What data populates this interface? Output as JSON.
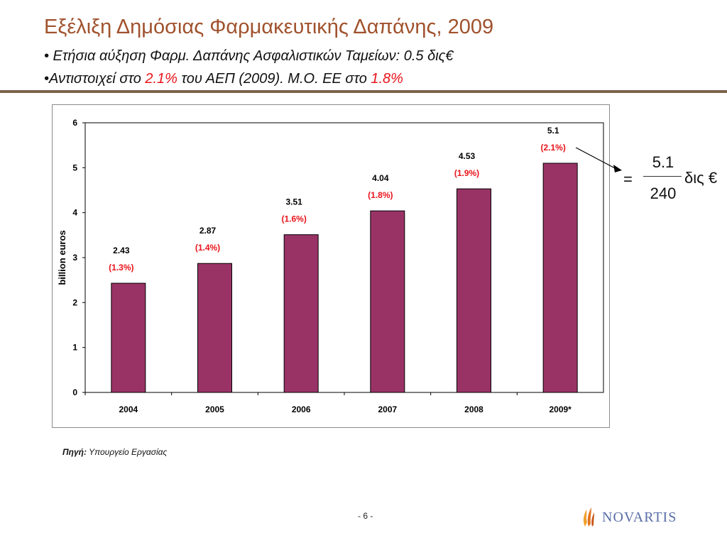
{
  "slide": {
    "title": "Εξέλιξη Δημόσιας Φαρμακευτικής Δαπάνης, 2009",
    "bullet1": "• Ετήσια αύξηση Φαρμ. Δαπάνης Ασφαλιστικών Ταμείων: 0.5 δις€",
    "bullet2_prefix": "•Αντιστοιχεί στο ",
    "bullet2_value1": "2.1%",
    "bullet2_mid": " του ΑΕΠ (2009). Μ.Ο. ΕΕ στο ",
    "bullet2_value2": "1.8%",
    "source_label": "Πηγή:",
    "source_text": " Υπουργείο Εργασίας",
    "page_number": "- 6 -",
    "logo_text": "NOVARTIS"
  },
  "equation": {
    "equals": "=",
    "numerator": "5.1",
    "denominator": "240",
    "unit": "δις €"
  },
  "colors": {
    "bar": "#993366",
    "title": "#a0522d",
    "highlight": "#e8131a",
    "rule": "#7a6348"
  },
  "chart_data": {
    "type": "bar",
    "categories": [
      "2004",
      "2005",
      "2006",
      "2007",
      "2008",
      "2009*"
    ],
    "values": [
      2.43,
      2.87,
      3.51,
      4.04,
      4.53,
      5.1
    ],
    "value_labels": [
      "2.43",
      "2.87",
      "3.51",
      "4.04",
      "4.53",
      "5.1"
    ],
    "pct_labels": [
      "(1.3%)",
      "(1.4%)",
      "(1.6%)",
      "(1.8%)",
      "(1.9%)",
      "(2.1%)"
    ],
    "ylabel": "billion euros",
    "ylim": [
      0,
      6
    ],
    "yticks": [
      0,
      1,
      2,
      3,
      4,
      5,
      6
    ],
    "grid": false,
    "legend": "none"
  }
}
